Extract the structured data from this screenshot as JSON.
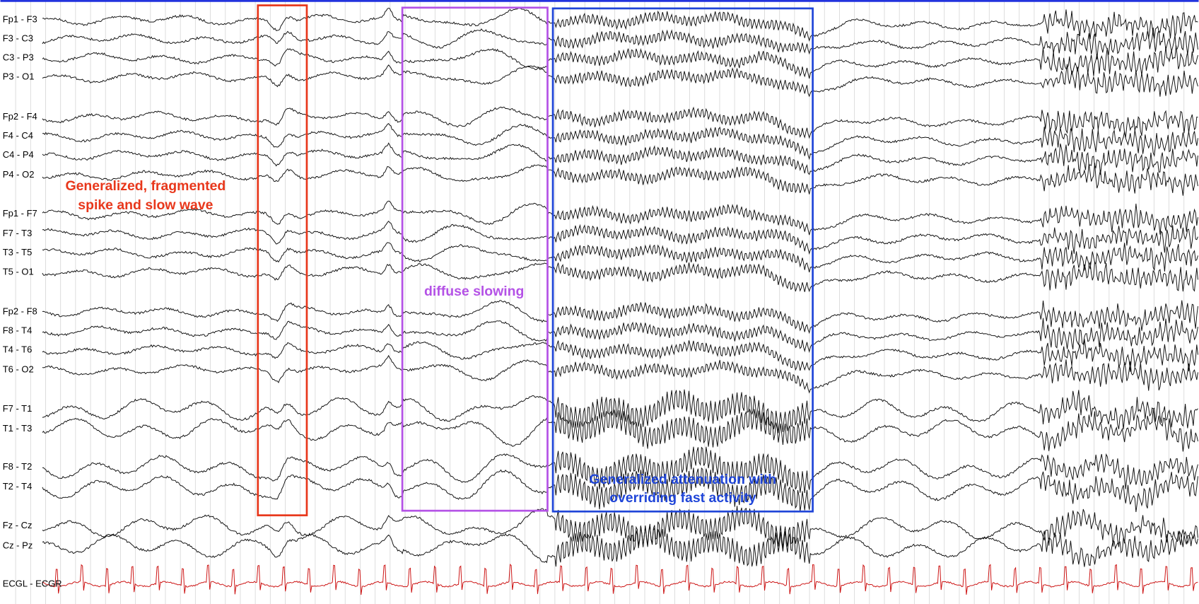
{
  "channels": [
    "Fp1 - F3",
    "F3 - C3",
    "C3 - P3",
    "P3 - O1",
    "Fp2 - F4",
    "F4 - C4",
    "C4 - P4",
    "P4 - O2",
    "Fp1 - F7",
    "F7 - T3",
    "T3 - T5",
    "T5 - O1",
    "Fp2 - F8",
    "F8 - T4",
    "T4 - T6",
    "T6 - O2",
    "F7 - T1",
    "T1 - T3",
    "F8 - T2",
    "T2 - T4",
    "Fz - Cz",
    "Cz - Pz",
    "ECGL - ECGR"
  ],
  "annotations": {
    "spike": [
      "Generalized, fragmented",
      "spike and slow wave"
    ],
    "slowing": [
      "diffuse slowing"
    ],
    "attenuation": [
      "Generalized attenuation with",
      "overriding fast activity"
    ]
  }
}
